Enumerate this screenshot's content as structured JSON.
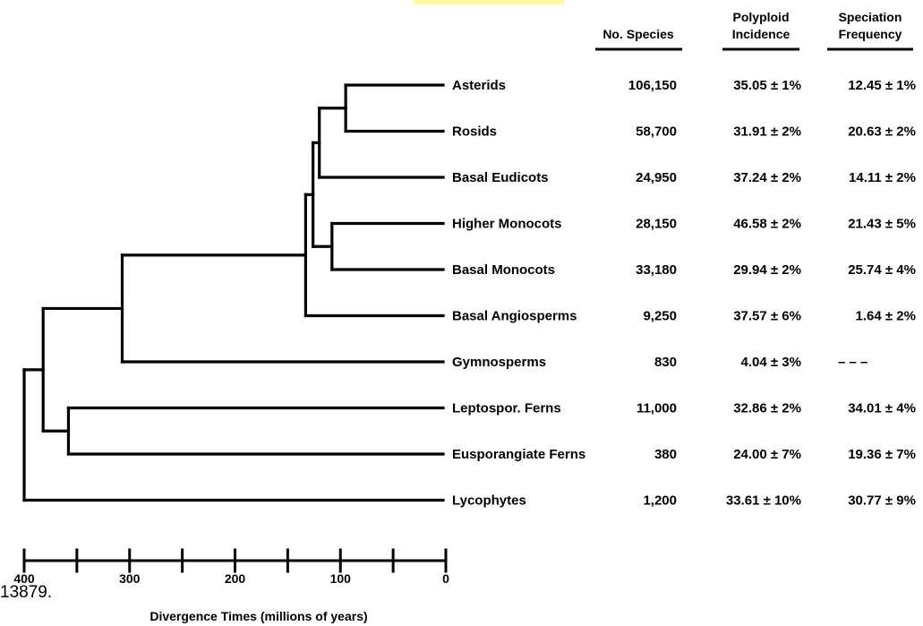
{
  "highlight_color": "#fff7a8",
  "headers": {
    "species": [
      "No. Species"
    ],
    "polyploid": [
      "Polyploid",
      "Incidence"
    ],
    "speciation": [
      "Speciation",
      "Frequency"
    ]
  },
  "taxa": [
    {
      "name": "Asterids",
      "species": "106,150",
      "polyploid": "35.05 ± 1%",
      "speciation": "12.45 ± 1%"
    },
    {
      "name": "Rosids",
      "species": "58,700",
      "polyploid": "31.91 ± 2%",
      "speciation": "20.63 ± 2%"
    },
    {
      "name": "Basal Eudicots",
      "species": "24,950",
      "polyploid": "37.24 ± 2%",
      "speciation": "14.11 ± 2%"
    },
    {
      "name": "Higher Monocots",
      "species": "28,150",
      "polyploid": "46.58 ± 2%",
      "speciation": "21.43 ± 5%"
    },
    {
      "name": "Basal Monocots",
      "species": "33,180",
      "polyploid": "29.94 ± 2%",
      "speciation": "25.74 ± 4%"
    },
    {
      "name": "Basal Angiosperms",
      "species": "9,250",
      "polyploid": "37.57 ± 6%",
      "speciation": "1.64 ± 2%"
    },
    {
      "name": "Gymnosperms",
      "species": "830",
      "polyploid": "4.04 ± 3%",
      "speciation": "– – –"
    },
    {
      "name": "Leptospor. Ferns",
      "species": "11,000",
      "polyploid": "32.86 ± 2%",
      "speciation": "34.01 ± 4%"
    },
    {
      "name": "Eusporangiate Ferns",
      "species": "380",
      "polyploid": "24.00 ± 7%",
      "speciation": "19.36 ± 7%"
    },
    {
      "name": "Lycophytes",
      "species": "1,200",
      "polyploid": "33.61 ± 10%",
      "speciation": "30.77 ± 9%"
    }
  ],
  "tree": {
    "nodes": [
      {
        "id": "asterids_rosids",
        "age": 95,
        "children": [
          0,
          1
        ]
      },
      {
        "id": "eudicots",
        "age": 120,
        "children": [
          "asterids_rosids",
          2
        ]
      },
      {
        "id": "monocots",
        "age": 108,
        "children": [
          3,
          4
        ]
      },
      {
        "id": "eudicots_monocots",
        "age": 126,
        "children": [
          "eudicots",
          "monocots"
        ]
      },
      {
        "id": "angiosperms",
        "age": 133,
        "children": [
          "eudicots_monocots",
          5
        ]
      },
      {
        "id": "seed_plants",
        "age": 307,
        "children": [
          "angiosperms",
          6
        ]
      },
      {
        "id": "ferns",
        "age": 358,
        "children": [
          7,
          8
        ]
      },
      {
        "id": "euphyllophytes",
        "age": 382,
        "children": [
          "seed_plants",
          "ferns"
        ]
      },
      {
        "id": "vascular_plants",
        "age": 400,
        "children": [
          "euphyllophytes",
          9
        ]
      }
    ]
  },
  "axis": {
    "title": "Divergence Times (millions of years)",
    "range": [
      400,
      0
    ],
    "ticks": [
      400,
      350,
      300,
      250,
      200,
      150,
      100,
      50,
      0
    ],
    "labeled_ticks": [
      "400",
      "300",
      "200",
      "100",
      "0"
    ]
  },
  "fragment_text": "13879."
}
